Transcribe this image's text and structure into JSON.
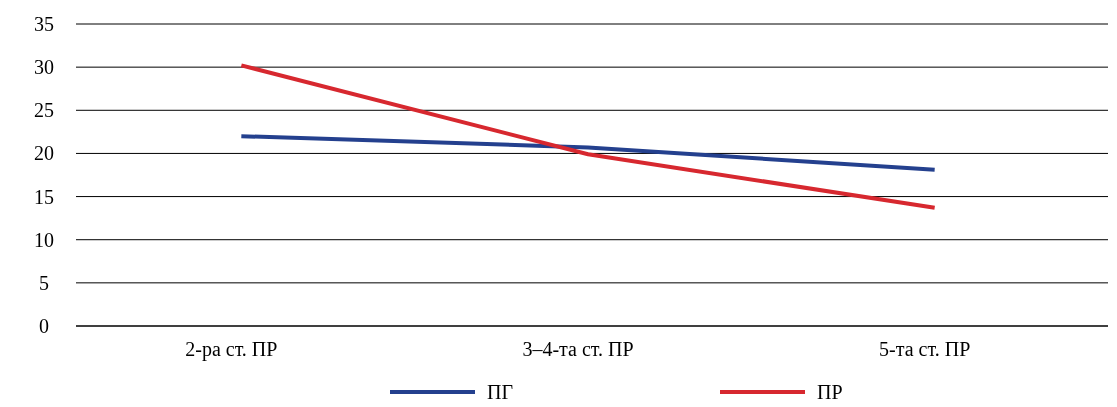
{
  "chart_data": {
    "type": "line",
    "categories": [
      "2-ра ст. ПР",
      "3–4-та ст. ПР",
      "5-та ст. ПР"
    ],
    "series": [
      {
        "name": "ПГ",
        "color": "#24408e",
        "values": [
          22,
          20.7,
          18.1
        ]
      },
      {
        "name": "ПР",
        "color": "#d7282f",
        "values": [
          30.2,
          19.9,
          13.7
        ]
      }
    ],
    "ylim": [
      0,
      35
    ],
    "yticks": [
      0,
      5,
      10,
      15,
      20,
      25,
      30,
      35
    ],
    "grid": "y",
    "legend": "bottom",
    "marker": "none",
    "line_style": "solid"
  }
}
